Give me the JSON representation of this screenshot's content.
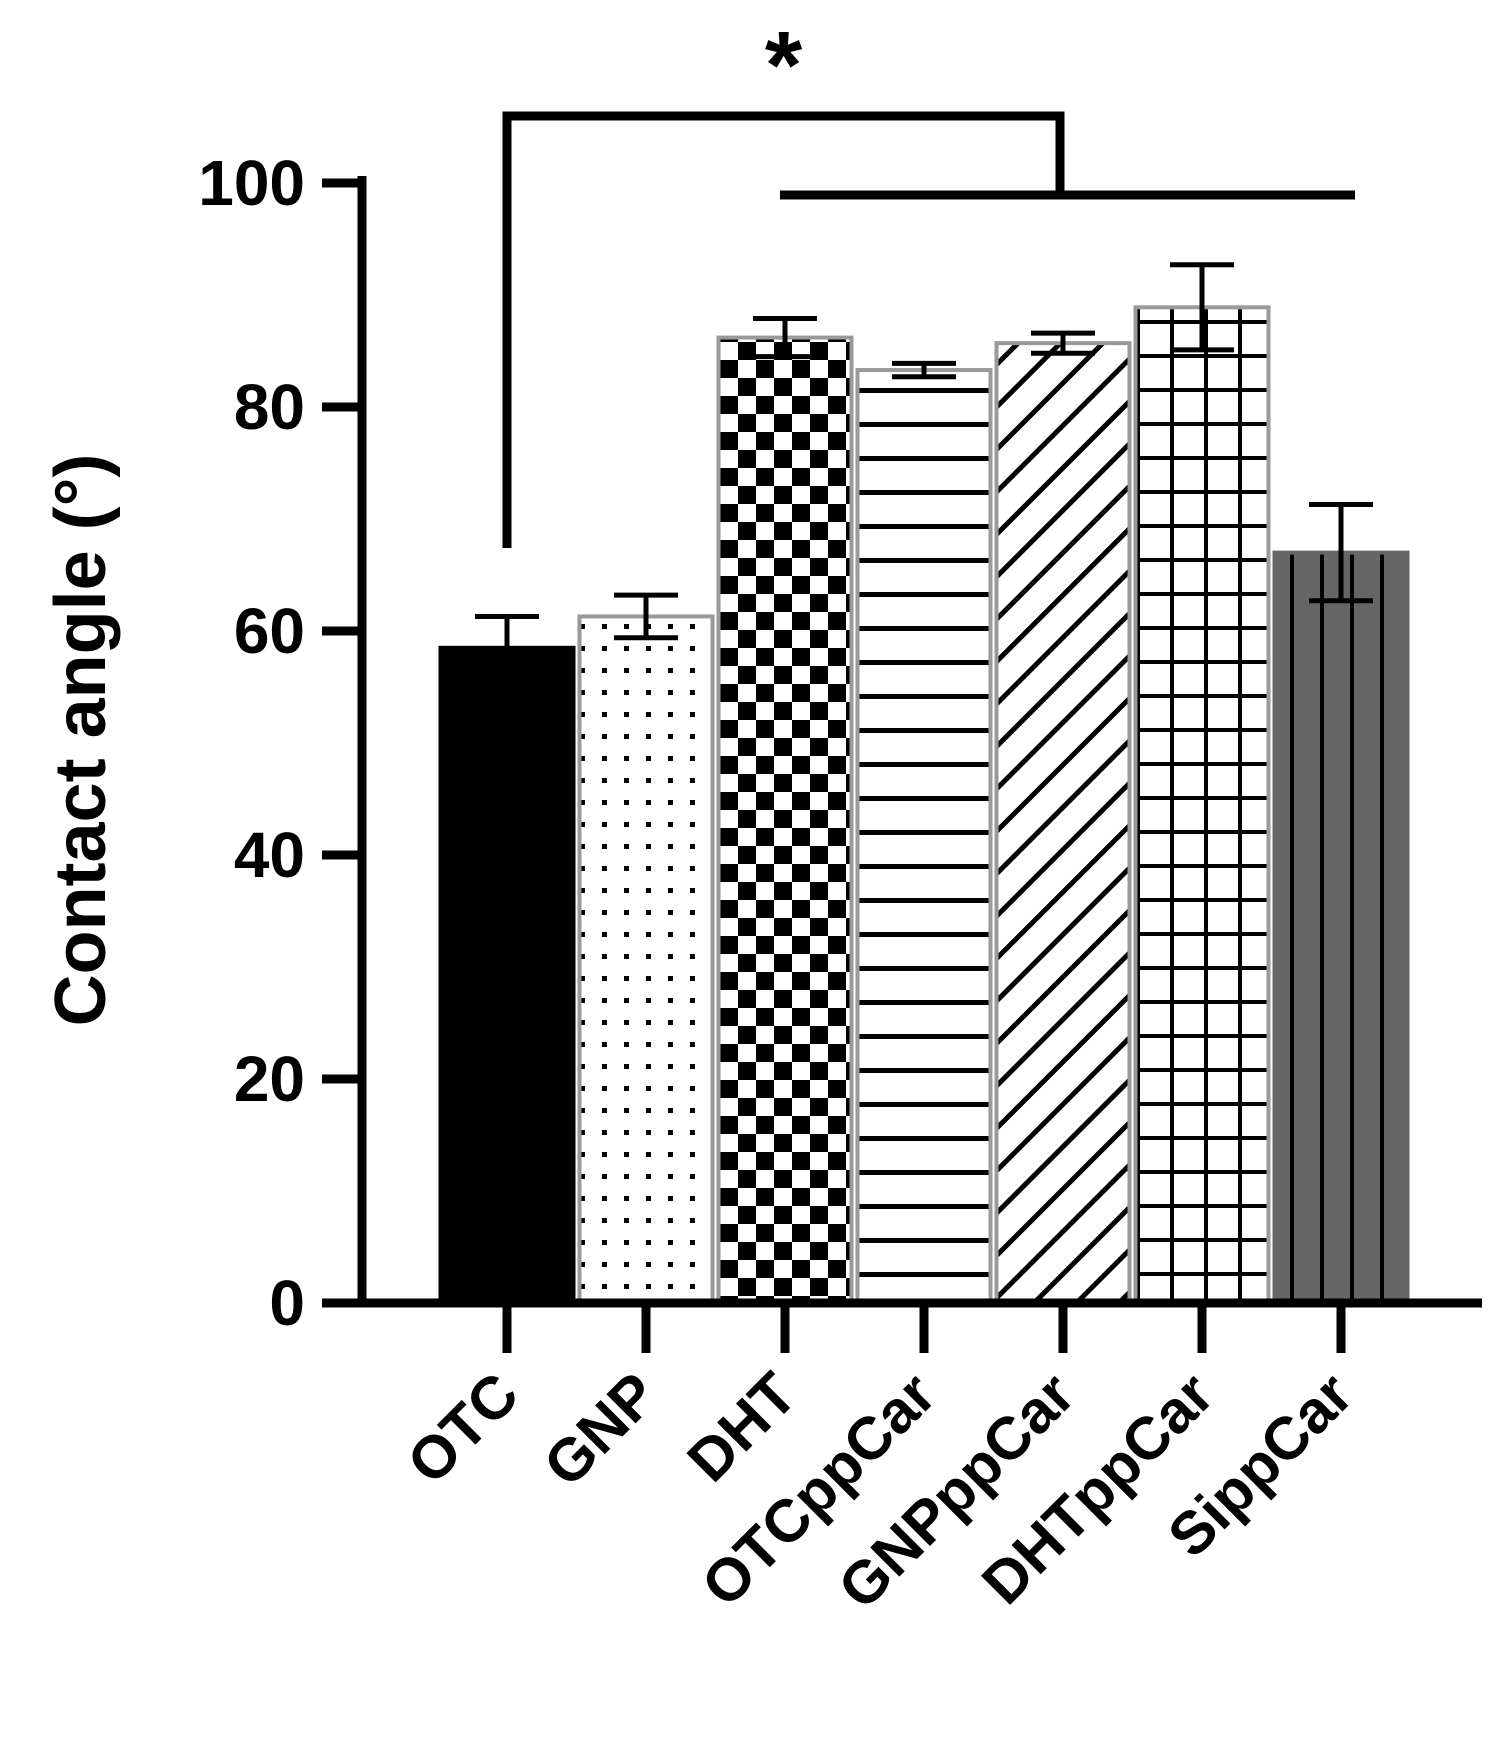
{
  "chart_data": {
    "type": "bar",
    "title": "",
    "xlabel": "",
    "ylabel": "Contact angle (°)",
    "ylim": [
      0,
      100
    ],
    "yticks": [
      0,
      20,
      40,
      60,
      80,
      100
    ],
    "categories": [
      "OTC",
      "GNP",
      "DHT",
      "OTCppCar",
      "GNPppCar",
      "DHTppCar",
      "SippCar"
    ],
    "values": [
      58.5,
      61.3,
      86.2,
      83.3,
      85.7,
      88.9,
      67.0
    ],
    "errors": [
      2.8,
      1.9,
      1.7,
      0.6,
      0.9,
      3.8,
      4.3
    ],
    "patterns": [
      "solid-black",
      "dots",
      "checker",
      "horizontal-lines",
      "diagonal-lines",
      "grid",
      "solid-gray-vertical-lines"
    ],
    "colors": {
      "black": "#000000",
      "gray_fill": "#666666",
      "outline": "#9a9a9a",
      "white": "#ffffff"
    },
    "significance": {
      "label": "*",
      "from_category": "OTC",
      "to_categories": [
        "DHT",
        "OTCppCar",
        "GNPppCar",
        "DHTppCar",
        "SippCar"
      ]
    }
  }
}
